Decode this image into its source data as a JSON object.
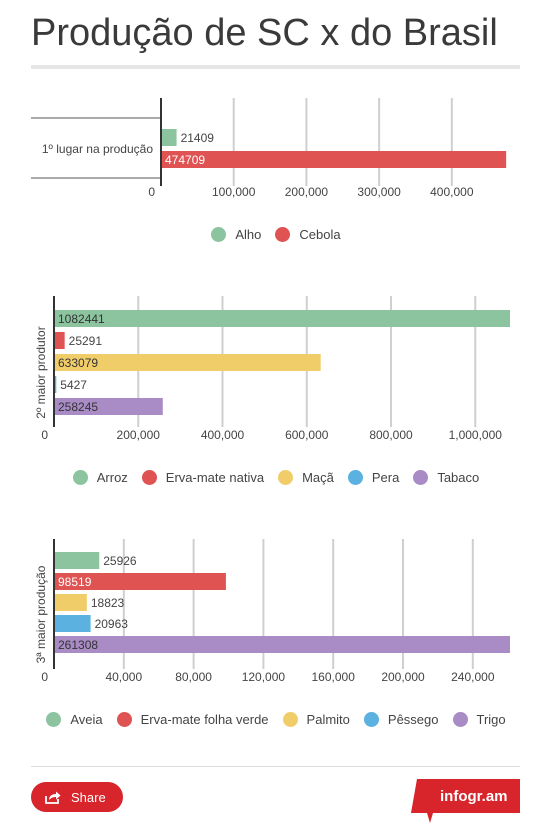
{
  "page": {
    "title": "Produção de SC x do Brasil",
    "share_label": "Share",
    "brand": "infogr.am"
  },
  "colors": {
    "green": "#8cc4a0",
    "red": "#df5353",
    "yellow": "#f1cd6a",
    "blue": "#5bb1e0",
    "purple": "#a98bc6"
  },
  "chart_data": [
    {
      "type": "bar",
      "orientation": "horizontal",
      "category_label": "1º lugar na produção",
      "xlim": [
        0,
        480000
      ],
      "ticks": [
        0,
        100000,
        200000,
        300000,
        400000
      ],
      "tick_labels": [
        "0",
        "100,000",
        "200,000",
        "300,000",
        "400,000"
      ],
      "series": [
        {
          "name": "Alho",
          "value": 21409,
          "label": "21409",
          "color": "#8cc4a0"
        },
        {
          "name": "Cebola",
          "value": 474709,
          "label": "474709",
          "color": "#df5353"
        }
      ],
      "grid": true,
      "legend": "bottom"
    },
    {
      "type": "bar",
      "orientation": "horizontal",
      "category_label": "2º maior produtor",
      "xlim": [
        0,
        1082441
      ],
      "ticks": [
        0,
        200000,
        400000,
        600000,
        800000,
        1000000
      ],
      "tick_labels": [
        "0",
        "200,000",
        "400,000",
        "600,000",
        "800,000",
        "1,000,000"
      ],
      "series": [
        {
          "name": "Arroz",
          "value": 1082441,
          "label": "1082441",
          "color": "#8cc4a0"
        },
        {
          "name": "Erva-mate nativa",
          "value": 25291,
          "label": "25291",
          "color": "#df5353"
        },
        {
          "name": "Maçã",
          "value": 633079,
          "label": "633079",
          "color": "#f1cd6a"
        },
        {
          "name": "Pera",
          "value": 5427,
          "label": "5427",
          "color": "#5bb1e0"
        },
        {
          "name": "Tabaco",
          "value": 258245,
          "label": "258245",
          "color": "#a98bc6"
        }
      ],
      "grid": true,
      "legend": "bottom"
    },
    {
      "type": "bar",
      "orientation": "horizontal",
      "category_label": "3ª maior produção",
      "xlim": [
        0,
        261308
      ],
      "ticks": [
        0,
        40000,
        80000,
        120000,
        160000,
        200000,
        240000
      ],
      "tick_labels": [
        "0",
        "40,000",
        "80,000",
        "120,000",
        "160,000",
        "200,000",
        "240,000"
      ],
      "series": [
        {
          "name": "Aveia",
          "value": 25926,
          "label": "25926",
          "color": "#8cc4a0"
        },
        {
          "name": "Erva-mate folha verde",
          "value": 98519,
          "label": "98519",
          "color": "#df5353"
        },
        {
          "name": "Palmito",
          "value": 18823,
          "label": "18823",
          "color": "#f1cd6a"
        },
        {
          "name": "Pêssego",
          "value": 20963,
          "label": "20963",
          "color": "#5bb1e0"
        },
        {
          "name": "Trigo",
          "value": 261308,
          "label": "261308",
          "color": "#a98bc6"
        }
      ],
      "grid": true,
      "legend": "bottom"
    }
  ]
}
